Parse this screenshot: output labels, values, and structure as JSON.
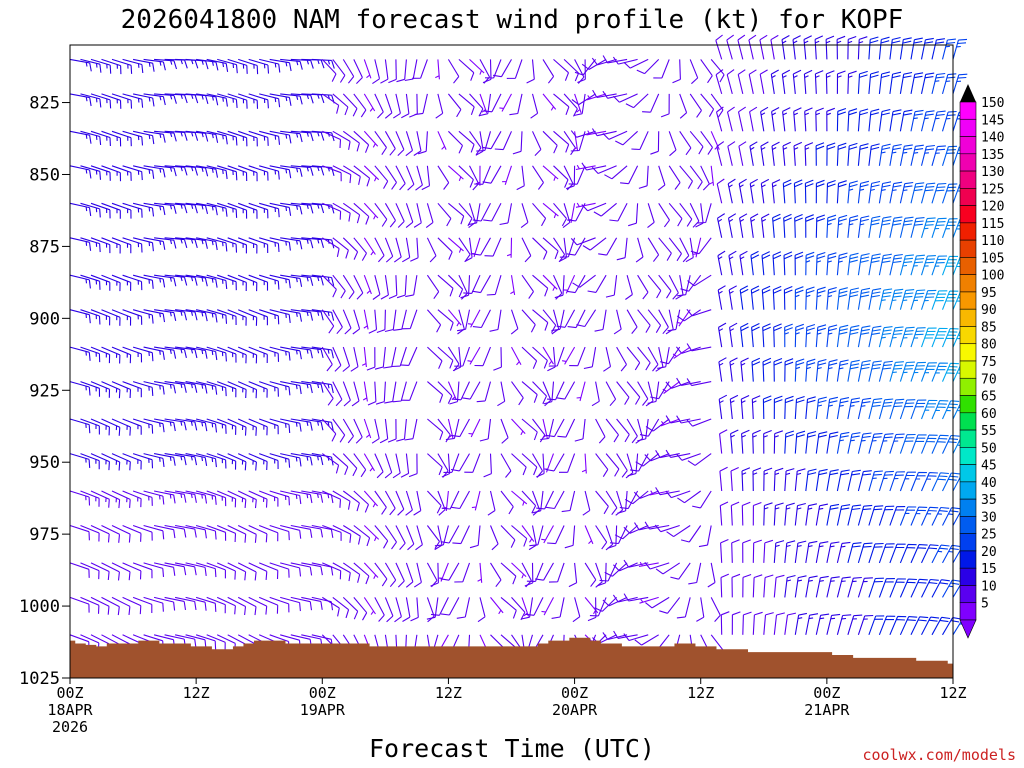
{
  "chart_data": {
    "type": "wind-barb-time-height",
    "title": "2026041800 NAM forecast wind profile (kt) for KOPF",
    "xlabel": "Forecast Time (UTC)",
    "ylabel": "",
    "ylim": [
      1025,
      805
    ],
    "y_ticks": [
      825,
      850,
      875,
      900,
      925,
      950,
      975,
      1000,
      1025
    ],
    "y_tick_labels": [
      "825",
      "850",
      "875",
      "900",
      "925",
      "950",
      "975",
      "1000",
      "1025"
    ],
    "x_range_hours": [
      0,
      84
    ],
    "x_ticks": [
      {
        "hour": 0,
        "line1": "00Z",
        "line2": "18APR",
        "line3": "2026"
      },
      {
        "hour": 12,
        "line1": "12Z",
        "line2": "",
        "line3": ""
      },
      {
        "hour": 24,
        "line1": "00Z",
        "line2": "19APR",
        "line3": ""
      },
      {
        "hour": 36,
        "line1": "12Z",
        "line2": "",
        "line3": ""
      },
      {
        "hour": 48,
        "line1": "00Z",
        "line2": "20APR",
        "line3": ""
      },
      {
        "hour": 60,
        "line1": "12Z",
        "line2": "",
        "line3": ""
      },
      {
        "hour": 72,
        "line1": "00Z",
        "line2": "21APR",
        "line3": ""
      },
      {
        "hour": 84,
        "line1": "12Z",
        "line2": "",
        "line3": ""
      }
    ],
    "barb_time_step_hours": 1,
    "barb_levels_hpa": [
      810,
      822,
      835,
      847,
      860,
      872,
      885,
      897,
      910,
      922,
      935,
      947,
      960,
      972,
      985,
      997,
      1010
    ],
    "surface_pressure_hpa": [
      1012,
      1013,
      1013.5,
      1014,
      1013,
      1013,
      1013,
      1012,
      1012,
      1013,
      1013,
      1013,
      1014,
      1014,
      1015,
      1015,
      1014,
      1013,
      1012,
      1012,
      1012,
      1013,
      1013,
      1013,
      1013,
      1013,
      1013,
      1013,
      1013,
      1014,
      1014,
      1014,
      1014,
      1014,
      1014,
      1014,
      1014,
      1014,
      1014,
      1014,
      1014,
      1014,
      1014,
      1014,
      1014,
      1013,
      1012,
      1012,
      1011,
      1011,
      1012,
      1013,
      1013,
      1014,
      1014,
      1014,
      1014,
      1014,
      1013,
      1013,
      1014,
      1014,
      1015,
      1015,
      1015,
      1016,
      1016,
      1016,
      1016,
      1016,
      1016,
      1016,
      1016,
      1017,
      1017,
      1018,
      1018,
      1018,
      1018,
      1018,
      1018,
      1019,
      1019,
      1019,
      1020
    ],
    "colorbar": {
      "values": [
        5,
        10,
        15,
        20,
        25,
        30,
        35,
        40,
        45,
        50,
        55,
        60,
        65,
        70,
        75,
        80,
        85,
        90,
        95,
        100,
        105,
        110,
        115,
        120,
        125,
        130,
        135,
        140,
        145,
        150
      ],
      "labels": [
        "5",
        "10",
        "15",
        "20",
        "25",
        "30",
        "35",
        "40",
        "45",
        "50",
        "55",
        "60",
        "65",
        "70",
        "75",
        "80",
        "85",
        "90",
        "95",
        "100",
        "105",
        "110",
        "115",
        "120",
        "125",
        "130",
        "135",
        "140",
        "145",
        "150"
      ],
      "colors": [
        "#8000ff",
        "#5a00f0",
        "#2a00e6",
        "#0018e8",
        "#0040f0",
        "#005cf0",
        "#0080f0",
        "#00a8f0",
        "#00c8e8",
        "#00e8c8",
        "#00e890",
        "#00e050",
        "#30e000",
        "#90f000",
        "#d8f800",
        "#f8f800",
        "#f8d800",
        "#f8b800",
        "#f89800",
        "#f08000",
        "#e86000",
        "#e84000",
        "#f02000",
        "#f80020",
        "#f00050",
        "#f00080",
        "#f000b0",
        "#f000d8",
        "#f000f8",
        "#ff00ff"
      ]
    },
    "colors": {
      "ground": "#a0522d",
      "weak_barb": "#8000ff",
      "strong_barb": "#0090ff"
    }
  },
  "credit": "coolwx.com/models"
}
